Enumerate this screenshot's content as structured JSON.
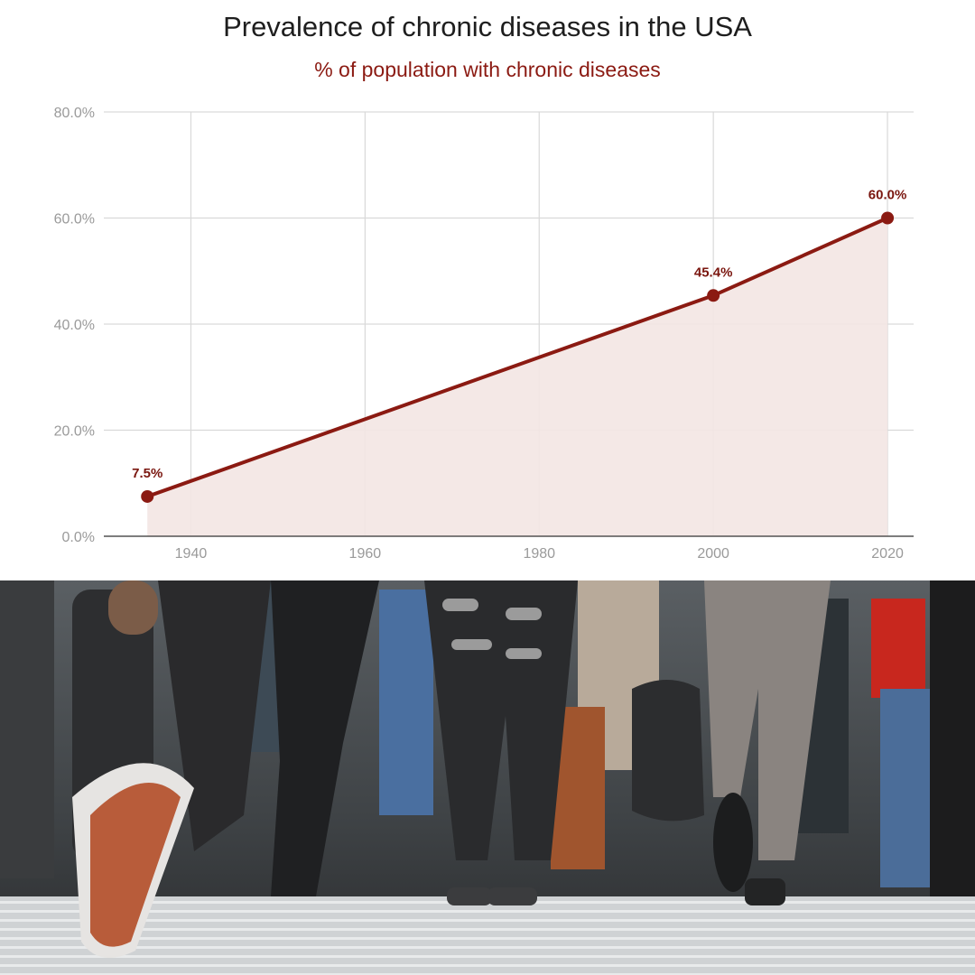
{
  "chart_data": {
    "type": "area",
    "title": "Prevalence of chronic diseases in the USA",
    "subtitle": "% of population with chronic diseases",
    "xlabel": "",
    "ylabel": "",
    "x": [
      1935,
      2000,
      2020
    ],
    "values": [
      7.5,
      45.4,
      60.0
    ],
    "data_labels": [
      "7.5%",
      "45.4%",
      "60.0%"
    ],
    "xlim": [
      1930,
      2023
    ],
    "ylim": [
      0,
      80
    ],
    "x_ticks": [
      1940,
      1960,
      1980,
      2000,
      2020
    ],
    "x_tick_labels": [
      "1940",
      "1960",
      "1980",
      "2000",
      "2020"
    ],
    "y_ticks": [
      0,
      20,
      40,
      60,
      80
    ],
    "y_tick_labels": [
      "0.0%",
      "20.0%",
      "40.0%",
      "60.0%",
      "80.0%"
    ],
    "grid": true,
    "legend": "none",
    "colors": {
      "line": "#8b1a12",
      "fill": "#f3e5e3",
      "subtitle": "#8b1a12",
      "grid": "#d9d9d9",
      "axis": "#555555",
      "tick_text": "#9a9a9a",
      "label_text": "#7a160f"
    }
  },
  "photo": {
    "description_icon": "crowd-walking-photo"
  }
}
